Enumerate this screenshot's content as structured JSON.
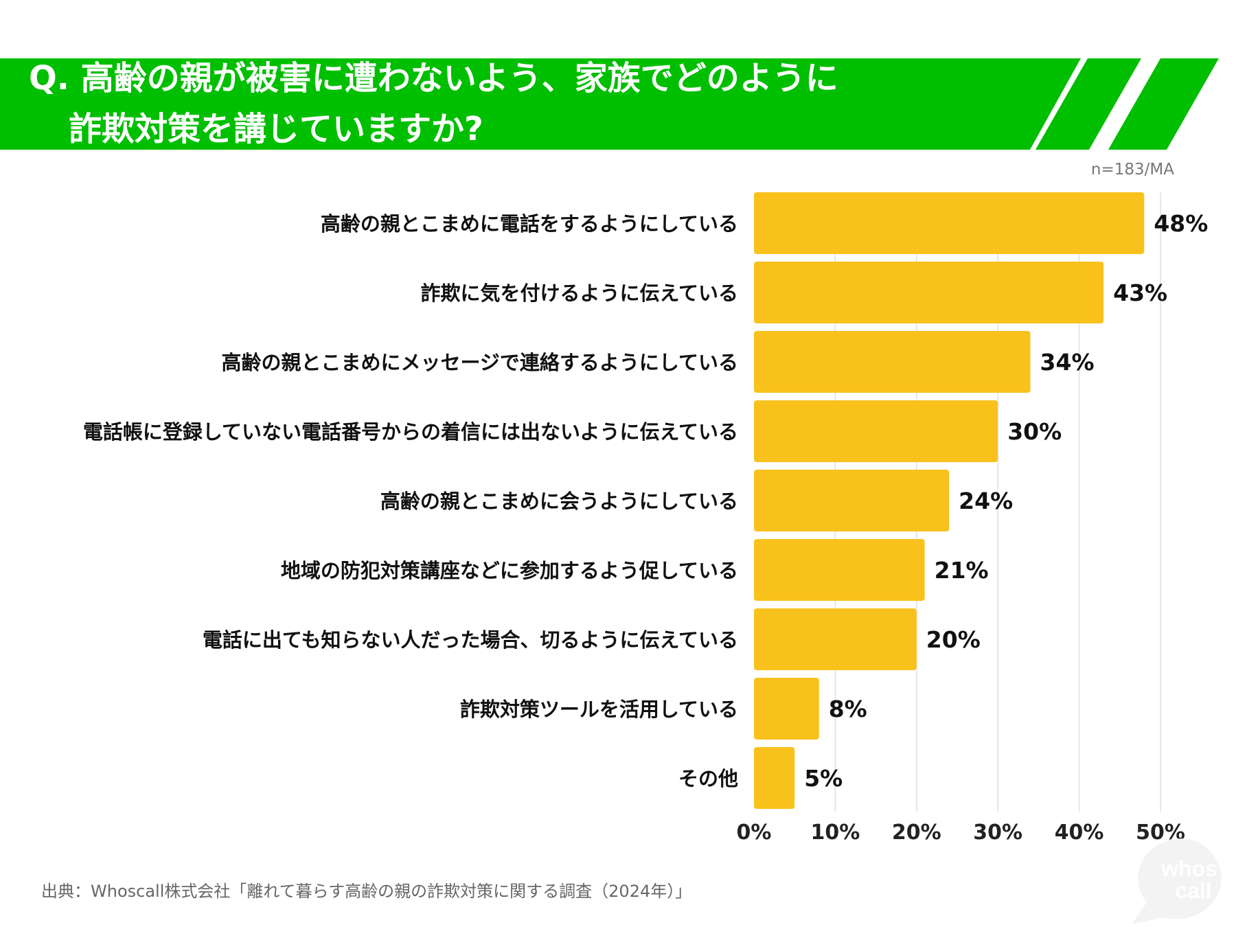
{
  "header": {
    "question_line1": "Q. 高齢の親が被害に遭わないよう、家族でどのように",
    "question_line2": "詐欺対策を講じていますか?",
    "banner_color": "#00BE00"
  },
  "sample_note": "n=183/MA",
  "chart_data": {
    "type": "bar",
    "orientation": "horizontal",
    "title": "Q. 高齢の親が被害に遭わないよう、家族でどのように詐欺対策を講じていますか?",
    "categories": [
      "高齢の親とこまめに電話をするようにしている",
      "詐欺に気を付けるように伝えている",
      "高齢の親とこまめにメッセージで連絡するようにしている",
      "電話帳に登録していない電話番号からの着信には出ないように伝えている",
      "高齢の親とこまめに会うようにしている",
      "地域の防犯対策講座などに参加するよう促している",
      "電話に出ても知らない人だった場合、切るように伝えている",
      "詐欺対策ツールを活用している",
      "その他"
    ],
    "values": [
      48,
      43,
      34,
      30,
      24,
      21,
      20,
      8,
      5
    ],
    "value_labels": [
      "48%",
      "43%",
      "34%",
      "30%",
      "24%",
      "21%",
      "20%",
      "8%",
      "5%"
    ],
    "xlim": [
      0,
      50
    ],
    "x_ticks": [
      0,
      10,
      20,
      30,
      40,
      50
    ],
    "x_tick_labels": [
      "0%",
      "10%",
      "20%",
      "30%",
      "40%",
      "50%"
    ],
    "xlabel": "",
    "ylabel": "",
    "grid": true,
    "bar_color": "#F9C11C",
    "grid_color": "#E6E6E6"
  },
  "source": "出典：Whoscall株式会社「離れて暮らす高齢の親の詐欺対策に関する調査（2024年）」",
  "logo": {
    "line1": "whos",
    "line2": "call"
  }
}
